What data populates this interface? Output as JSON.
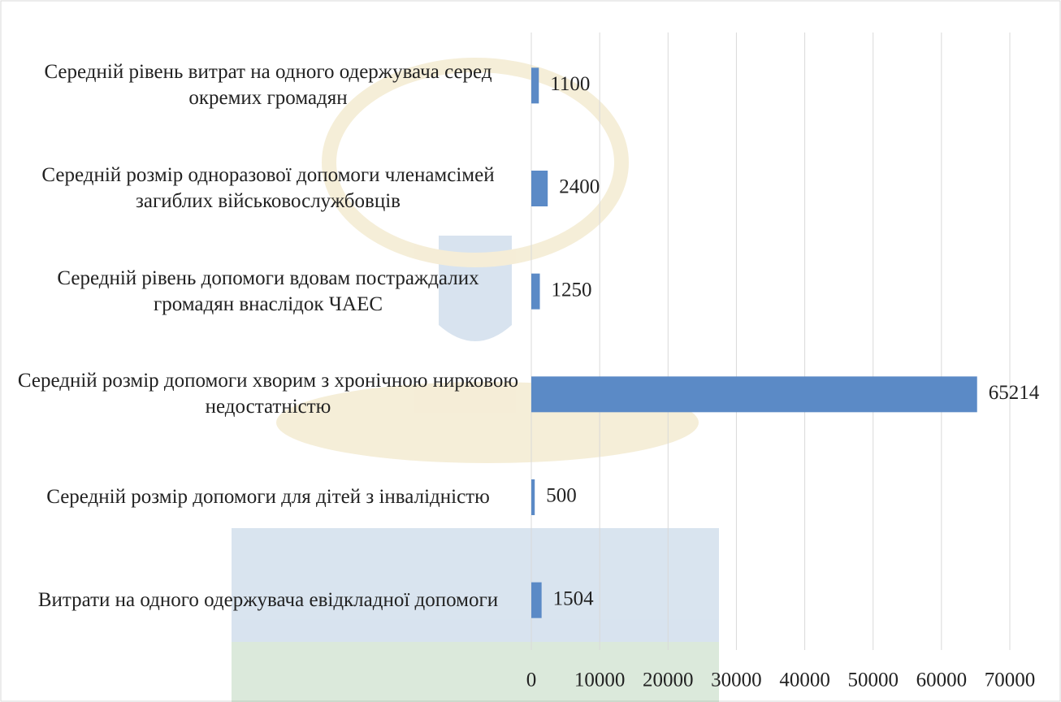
{
  "chart_data": {
    "type": "hbar",
    "categories": [
      "Середній рівень витрат на одного одержувача серед окремих громадян",
      "Середній розмір одноразової допомоги членамсімей загиблих військовослужбовців",
      "Середній рівень допомоги вдовам постраждалих громадян внаслідок ЧАЕС",
      "Середній розмір допомоги хворим з хронічною нирковою недостатністю",
      "Середній розмір допомоги для дітей з інвалідністю",
      "Витрати на одного одержувача евідкладної допомоги"
    ],
    "values": [
      1100,
      2400,
      1250,
      65214,
      500,
      1504
    ],
    "color": "#5b8ac6",
    "xlim": [
      0,
      70000
    ],
    "xticks": [
      0,
      10000,
      20000,
      30000,
      40000,
      50000,
      60000,
      70000
    ],
    "grid": true
  }
}
